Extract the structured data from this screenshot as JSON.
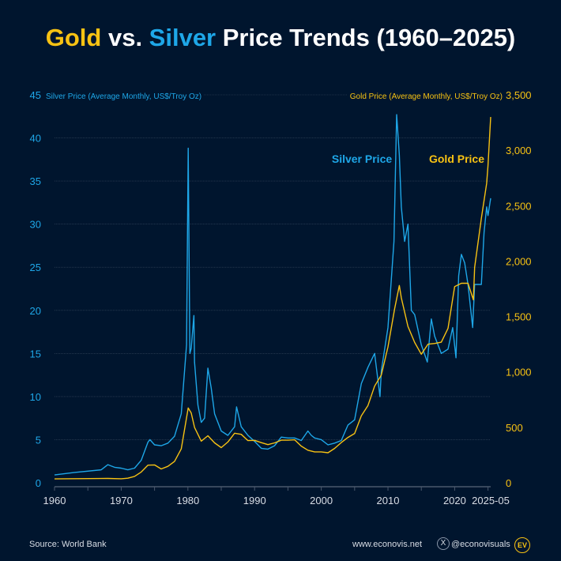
{
  "title": {
    "part1": "Gold",
    "part2": " vs. ",
    "part3": "Silver",
    "part4": " Price Trends (1960–2025)"
  },
  "footer": {
    "source": "Source: World Bank",
    "website": "www.econovis.net",
    "handle": "@econovisuals",
    "logo": "EV"
  },
  "colors": {
    "gold": "#f7c213",
    "silver": "#1ea7e8",
    "background": "#00152e"
  },
  "chart_data": {
    "type": "line",
    "left_axis_label": "Silver Price (Average Monthly, US$/Troy Oz)",
    "right_axis_label": "Gold Price (Average Monthly, US$/Troy Oz)",
    "left_ylim": [
      0,
      45
    ],
    "right_ylim": [
      0,
      3500
    ],
    "xlim": [
      1960,
      2025.4
    ],
    "left_ticks": [
      "0",
      "5",
      "10",
      "15",
      "20",
      "25",
      "30",
      "35",
      "40",
      "45"
    ],
    "right_ticks": [
      "0",
      "500",
      "1,000",
      "1,500",
      "2,000",
      "2,500",
      "3,000",
      "3,500"
    ],
    "x_ticks": [
      {
        "value": 1960,
        "label": "1960"
      },
      {
        "value": 1970,
        "label": "1970"
      },
      {
        "value": 1980,
        "label": "1980"
      },
      {
        "value": 1990,
        "label": "1990"
      },
      {
        "value": 2000,
        "label": "2000"
      },
      {
        "value": 2010,
        "label": "2010"
      },
      {
        "value": 2020,
        "label": "2020"
      },
      {
        "value": 2025.4,
        "label": "2025-05"
      }
    ],
    "grid": true,
    "series": [
      {
        "name": "Silver Price",
        "axis": "left",
        "color": "#1ea7e8",
        "points": [
          [
            1960,
            0.91
          ],
          [
            1963,
            1.2
          ],
          [
            1967,
            1.5
          ],
          [
            1968,
            2.1
          ],
          [
            1969,
            1.8
          ],
          [
            1970,
            1.7
          ],
          [
            1971,
            1.5
          ],
          [
            1972,
            1.7
          ],
          [
            1973,
            2.6
          ],
          [
            1974,
            4.7
          ],
          [
            1974.3,
            5.0
          ],
          [
            1975,
            4.4
          ],
          [
            1976,
            4.3
          ],
          [
            1977,
            4.6
          ],
          [
            1978,
            5.4
          ],
          [
            1979,
            8
          ],
          [
            1979.8,
            16
          ],
          [
            1980.05,
            38.8
          ],
          [
            1980.3,
            15
          ],
          [
            1980.5,
            15.6
          ],
          [
            1980.9,
            19.4
          ],
          [
            1981,
            14
          ],
          [
            1981.5,
            9
          ],
          [
            1982,
            7
          ],
          [
            1982.5,
            7.5
          ],
          [
            1983,
            13.3
          ],
          [
            1983.5,
            11
          ],
          [
            1984,
            8
          ],
          [
            1985,
            6
          ],
          [
            1986,
            5.5
          ],
          [
            1987,
            6.5
          ],
          [
            1987.3,
            8.8
          ],
          [
            1988,
            6.5
          ],
          [
            1989,
            5.5
          ],
          [
            1990,
            4.8
          ],
          [
            1991,
            4.0
          ],
          [
            1992,
            3.9
          ],
          [
            1993,
            4.3
          ],
          [
            1994,
            5.3
          ],
          [
            1995,
            5.2
          ],
          [
            1996,
            5.2
          ],
          [
            1997,
            4.9
          ],
          [
            1998,
            6.0
          ],
          [
            1998.5,
            5.5
          ],
          [
            1999,
            5.2
          ],
          [
            2000,
            5.0
          ],
          [
            2001,
            4.4
          ],
          [
            2002,
            4.6
          ],
          [
            2003,
            4.9
          ],
          [
            2004,
            6.7
          ],
          [
            2005,
            7.3
          ],
          [
            2006,
            11.5
          ],
          [
            2007,
            13.4
          ],
          [
            2008,
            15
          ],
          [
            2008.8,
            10
          ],
          [
            2009,
            13
          ],
          [
            2010,
            18
          ],
          [
            2010.9,
            28
          ],
          [
            2011.3,
            42.7
          ],
          [
            2011.7,
            38
          ],
          [
            2012,
            32
          ],
          [
            2012.5,
            28
          ],
          [
            2013,
            30
          ],
          [
            2013.5,
            20
          ],
          [
            2014,
            19.5
          ],
          [
            2015,
            16
          ],
          [
            2015.9,
            14
          ],
          [
            2016.5,
            19
          ],
          [
            2017,
            17
          ],
          [
            2018,
            15
          ],
          [
            2019,
            15.5
          ],
          [
            2019.7,
            18
          ],
          [
            2020.2,
            14.5
          ],
          [
            2020.6,
            24
          ],
          [
            2021,
            26.5
          ],
          [
            2021.5,
            25.5
          ],
          [
            2022,
            23
          ],
          [
            2022.7,
            18
          ],
          [
            2023,
            23
          ],
          [
            2023.5,
            23
          ],
          [
            2024,
            23
          ],
          [
            2024.4,
            29
          ],
          [
            2024.8,
            32
          ],
          [
            2025,
            31
          ],
          [
            2025.4,
            33
          ]
        ]
      },
      {
        "name": "Gold Price",
        "axis": "right",
        "color": "#f7c213",
        "points": [
          [
            1960,
            35
          ],
          [
            1968,
            39
          ],
          [
            1970,
            36
          ],
          [
            1971,
            41
          ],
          [
            1972,
            58
          ],
          [
            1973,
            97
          ],
          [
            1974,
            159
          ],
          [
            1975,
            161
          ],
          [
            1976,
            125
          ],
          [
            1977,
            148
          ],
          [
            1978,
            193
          ],
          [
            1979,
            306
          ],
          [
            1980.05,
            675
          ],
          [
            1980.5,
            630
          ],
          [
            1981,
            500
          ],
          [
            1982,
            376
          ],
          [
            1983,
            424
          ],
          [
            1984,
            360
          ],
          [
            1985,
            317
          ],
          [
            1986,
            368
          ],
          [
            1987,
            447
          ],
          [
            1988,
            437
          ],
          [
            1989,
            381
          ],
          [
            1990,
            383
          ],
          [
            1991,
            362
          ],
          [
            1992,
            344
          ],
          [
            1993,
            360
          ],
          [
            1994,
            384
          ],
          [
            1995,
            384
          ],
          [
            1996,
            388
          ],
          [
            1997,
            331
          ],
          [
            1998,
            294
          ],
          [
            1999,
            279
          ],
          [
            2000,
            279
          ],
          [
            2001,
            271
          ],
          [
            2002,
            310
          ],
          [
            2003,
            363
          ],
          [
            2004,
            409
          ],
          [
            2005,
            445
          ],
          [
            2006,
            604
          ],
          [
            2007,
            697
          ],
          [
            2008,
            872
          ],
          [
            2009,
            972
          ],
          [
            2010,
            1225
          ],
          [
            2011,
            1572
          ],
          [
            2011.7,
            1780
          ],
          [
            2012,
            1669
          ],
          [
            2013,
            1411
          ],
          [
            2014,
            1266
          ],
          [
            2015,
            1160
          ],
          [
            2016,
            1250
          ],
          [
            2017,
            1257
          ],
          [
            2018,
            1268
          ],
          [
            2019,
            1393
          ],
          [
            2020,
            1770
          ],
          [
            2021,
            1800
          ],
          [
            2022,
            1800
          ],
          [
            2022.8,
            1650
          ],
          [
            2023,
            1943
          ],
          [
            2024,
            2386
          ],
          [
            2024.8,
            2700
          ],
          [
            2025,
            2860
          ],
          [
            2025.4,
            3300
          ]
        ]
      }
    ]
  }
}
